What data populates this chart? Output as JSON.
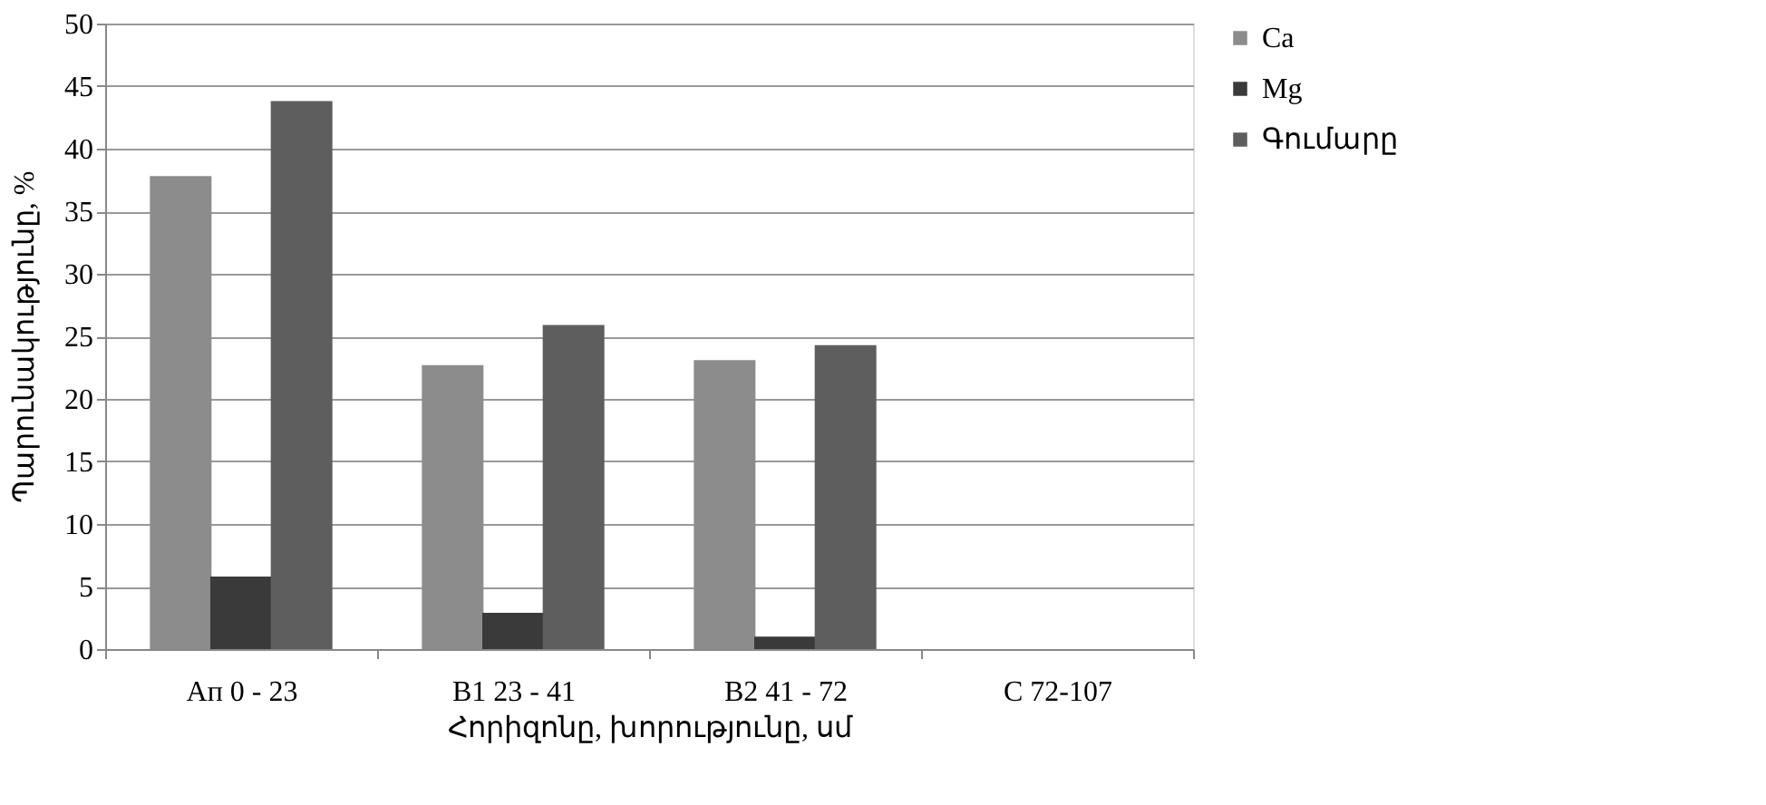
{
  "chart_data": {
    "type": "bar",
    "xlabel": "Հորիզոնը, խորությունը, սմ",
    "ylabel": "Պարունակությունը, %",
    "categories": [
      "Aп  0 - 23",
      "B1  23 - 41",
      "B2 41 - 72",
      "C  72-107"
    ],
    "series": [
      {
        "name": "Ca",
        "color": "#8c8c8c",
        "values": [
          37.8,
          22.7,
          23.1,
          null
        ]
      },
      {
        "name": "Mg",
        "color": "#3a3a3a",
        "values": [
          5.8,
          2.9,
          1.0,
          null
        ]
      },
      {
        "name": "Գումարը",
        "color": "#5e5e5e",
        "values": [
          43.8,
          25.9,
          24.3,
          null
        ]
      }
    ],
    "ylim": [
      0,
      50
    ],
    "yticks": [
      0,
      5,
      10,
      15,
      20,
      25,
      30,
      35,
      40,
      45,
      50
    ],
    "grid": "y",
    "legend": "right"
  }
}
